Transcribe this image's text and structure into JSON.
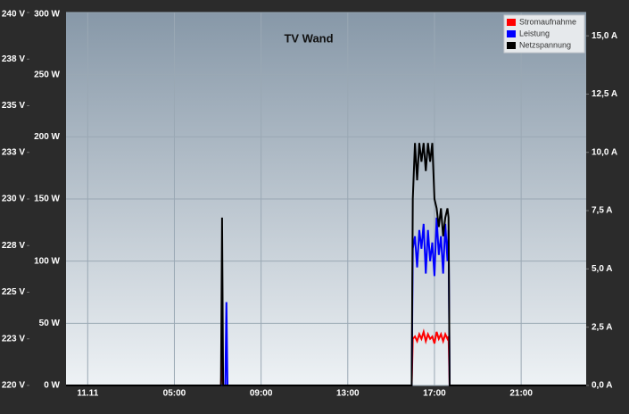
{
  "chart_data": {
    "type": "line",
    "title": "TV Wand",
    "x": [
      0,
      7.15,
      7.2,
      7.25,
      7.35,
      7.4,
      7.45,
      15.95,
      16.0,
      16.1,
      16.2,
      16.3,
      16.4,
      16.5,
      16.6,
      16.7,
      16.8,
      16.9,
      17.0,
      17.1,
      17.2,
      17.3,
      17.4,
      17.5,
      17.6,
      17.65,
      17.7,
      24
    ],
    "xlim": [
      0,
      24
    ],
    "xticks": [
      {
        "value": 1,
        "label": "11.11"
      },
      {
        "value": 5,
        "label": "05:00"
      },
      {
        "value": 9,
        "label": "09:00"
      },
      {
        "value": 13,
        "label": "13:00"
      },
      {
        "value": 17,
        "label": "17:00"
      },
      {
        "value": 21,
        "label": "21:00"
      }
    ],
    "ylim": [
      0,
      300
    ],
    "yticks": [
      {
        "value": 0,
        "label": "0 W"
      },
      {
        "value": 50,
        "label": "50 W"
      },
      {
        "value": 100,
        "label": "100 W"
      },
      {
        "value": 150,
        "label": "150 W"
      },
      {
        "value": 200,
        "label": "200 W"
      },
      {
        "value": 250,
        "label": "250 W"
      },
      {
        "value": 300,
        "label": "300 W"
      }
    ],
    "y2lim": [
      0,
      16
    ],
    "y2ticks": [
      {
        "value": 0,
        "label": "0,0 A"
      },
      {
        "value": 2.5,
        "label": "2,5 A"
      },
      {
        "value": 5,
        "label": "5,0 A"
      },
      {
        "value": 7.5,
        "label": "7,5 A"
      },
      {
        "value": 10,
        "label": "10,0 A"
      },
      {
        "value": 12.5,
        "label": "12,5 A"
      },
      {
        "value": 15,
        "label": "15,0 A"
      }
    ],
    "y3lim": [
      220,
      240
    ],
    "y3ticks": [
      {
        "value": 220,
        "label": "220 V"
      },
      {
        "value": 222.5,
        "label": "223 V"
      },
      {
        "value": 225,
        "label": "225 V"
      },
      {
        "value": 227.5,
        "label": "228 V"
      },
      {
        "value": 230,
        "label": "230 V"
      },
      {
        "value": 232.5,
        "label": "233 V"
      },
      {
        "value": 235,
        "label": "235 V"
      },
      {
        "value": 237.5,
        "label": "238 V"
      },
      {
        "value": 240,
        "label": "240 V"
      }
    ],
    "grid": true,
    "legend": "top-right",
    "series": [
      {
        "name": "Stromaufnahme",
        "color": "#ff0000",
        "axis": "y2",
        "values": [
          0,
          0,
          1.3,
          0,
          0,
          0,
          0,
          0,
          2.0,
          2.1,
          1.9,
          2.2,
          2.0,
          2.3,
          1.9,
          2.2,
          2.0,
          2.1,
          1.8,
          2.3,
          2.0,
          2.2,
          1.9,
          2.2,
          2.0,
          2.1,
          0,
          0
        ]
      },
      {
        "name": "Leistung",
        "color": "#0000ff",
        "axis": "y",
        "values": [
          0,
          0,
          0,
          0,
          0,
          67,
          0,
          0,
          110,
          120,
          95,
          125,
          110,
          130,
          90,
          125,
          100,
          115,
          88,
          135,
          105,
          120,
          90,
          130,
          100,
          125,
          0,
          0
        ]
      },
      {
        "name": "Netzspannung",
        "color": "#000000",
        "axis": "y3",
        "values": [
          220,
          220,
          229,
          220,
          220,
          220,
          220,
          220,
          230,
          233,
          231,
          233,
          232,
          233,
          231.5,
          233,
          232,
          233,
          230,
          229.5,
          228.5,
          229.5,
          228,
          229,
          229.5,
          229,
          220,
          220
        ]
      }
    ]
  }
}
